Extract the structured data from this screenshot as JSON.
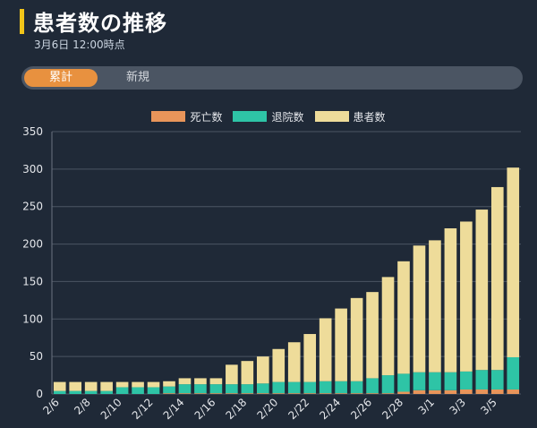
{
  "header": {
    "title": "患者数の推移",
    "timestamp": "3月6日 12:00時点"
  },
  "tabs": [
    {
      "label": "累計",
      "active": true
    },
    {
      "label": "新規",
      "active": false
    }
  ],
  "colors": {
    "accent": "#f0c419",
    "deaths": "#e8955a",
    "recovered": "#2ec4a6",
    "patients": "#eedc9a",
    "tab_active": "#e8913f"
  },
  "chart_data": {
    "type": "bar",
    "stacked": true,
    "legend": [
      "死亡数",
      "退院数",
      "患者数"
    ],
    "legend_position": "top",
    "ylim": [
      0,
      350
    ],
    "yticks": [
      0,
      50,
      100,
      150,
      200,
      250,
      300,
      350
    ],
    "grid": true,
    "categories": [
      "2/6",
      "2/7",
      "2/8",
      "2/9",
      "2/10",
      "2/11",
      "2/12",
      "2/13",
      "2/14",
      "2/15",
      "2/16",
      "2/17",
      "2/18",
      "2/19",
      "2/20",
      "2/21",
      "2/22",
      "2/23",
      "2/24",
      "2/25",
      "2/26",
      "2/27",
      "2/28",
      "2/29",
      "3/1",
      "3/2",
      "3/3",
      "3/4",
      "3/5",
      "3/6"
    ],
    "xtick_labels": [
      "2/6",
      "2/8",
      "2/10",
      "2/12",
      "2/14",
      "2/16",
      "2/18",
      "2/20",
      "2/22",
      "2/24",
      "2/26",
      "2/28",
      "3/1",
      "3/3",
      "3/5"
    ],
    "series": [
      {
        "name": "死亡数",
        "values": [
          0,
          0,
          0,
          0,
          0,
          0,
          0,
          1,
          1,
          1,
          1,
          1,
          1,
          1,
          1,
          1,
          1,
          1,
          1,
          1,
          1,
          1,
          3,
          5,
          5,
          5,
          6,
          6,
          6,
          6
        ]
      },
      {
        "name": "退院数",
        "values": [
          4,
          4,
          4,
          4,
          9,
          9,
          9,
          9,
          12,
          12,
          12,
          12,
          12,
          13,
          15,
          15,
          15,
          16,
          16,
          16,
          20,
          24,
          24,
          24,
          24,
          24,
          24,
          26,
          26,
          43
        ]
      },
      {
        "name": "患者数",
        "values": [
          12,
          12,
          12,
          12,
          7,
          7,
          7,
          7,
          8,
          8,
          8,
          26,
          31,
          36,
          44,
          53,
          64,
          84,
          97,
          111,
          115,
          131,
          150,
          169,
          176,
          192,
          200,
          214,
          244,
          253
        ]
      }
    ]
  }
}
